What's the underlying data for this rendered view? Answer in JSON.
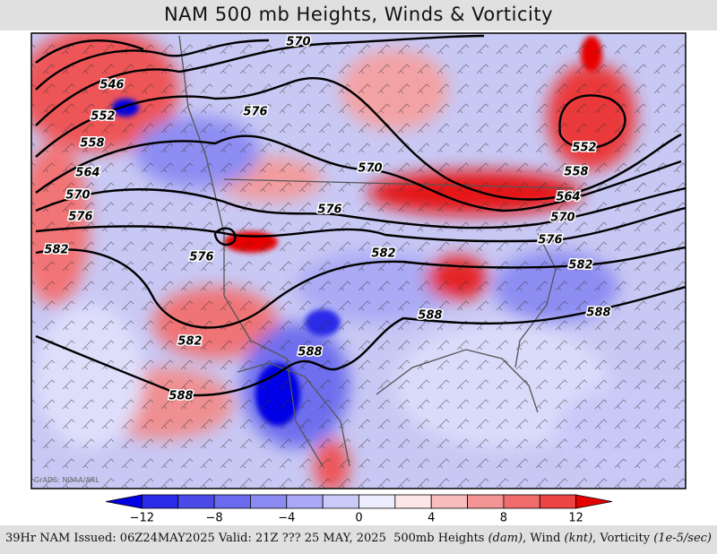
{
  "header": {
    "title": "NAM 500 mb Heights, Winds & Vorticity"
  },
  "map": {
    "height_labels": [
      570,
      546,
      552,
      558,
      564,
      570,
      576,
      582,
      576,
      570,
      576,
      576,
      582,
      582,
      588,
      588,
      588,
      552,
      558,
      564,
      570,
      576,
      582,
      588
    ],
    "credit": "GrADS: NOAA/ARL"
  },
  "colorbar": {
    "lim": [
      -14,
      14
    ],
    "levels": [
      -12,
      -10,
      -8,
      -6,
      -4,
      -2,
      0,
      2,
      4,
      6,
      8,
      10,
      12
    ],
    "colors": [
      "#0000e6",
      "#2a2ae8",
      "#4b4bea",
      "#6a6aee",
      "#8a8af2",
      "#a9a9f6",
      "#cacaf9",
      "#ececfd",
      "#fde6e6",
      "#f8bcbc",
      "#f49494",
      "#f06c6c",
      "#ec4444",
      "#e60000"
    ],
    "ticks": [
      {
        "value": -12,
        "label": "−12"
      },
      {
        "value": -8,
        "label": "−8"
      },
      {
        "value": -4,
        "label": "−4"
      },
      0,
      4,
      8,
      12
    ]
  },
  "footer": {
    "left": "39Hr NAM Issued: 06Z24MAY2025 Valid: 21Z ??? 25 MAY, 2025",
    "right": [
      "500mb Heights ",
      "(dam)",
      ", Wind ",
      "(knt)",
      ", Vorticity ",
      "(1e-5/sec)"
    ]
  }
}
